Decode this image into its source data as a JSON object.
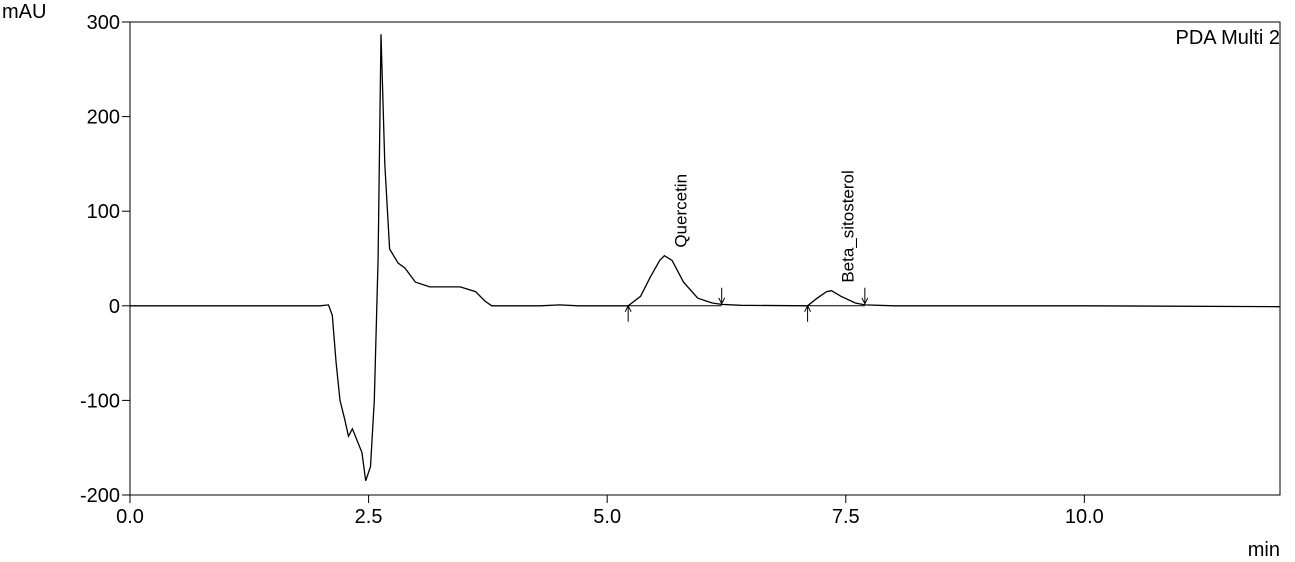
{
  "chart_data": {
    "type": "line",
    "title": "PDA Multi 2",
    "y_label": "mAU",
    "x_label": "min",
    "xlim": [
      0,
      12.05
    ],
    "ylim": [
      -200,
      300
    ],
    "xticks": [
      {
        "value": 0,
        "label": "0.0"
      },
      {
        "value": 2.5,
        "label": "2.5"
      },
      {
        "value": 5,
        "label": "5.0"
      },
      {
        "value": 7.5,
        "label": "7.5"
      },
      {
        "value": 10,
        "label": "10.0"
      }
    ],
    "yticks": [
      -200,
      -100,
      0,
      100,
      200,
      300
    ],
    "series": [
      {
        "color": "#000000",
        "x": [
          0,
          1.0,
          1.99,
          2.08,
          2.12,
          2.16,
          2.2,
          2.25,
          2.29,
          2.33,
          2.37,
          2.43,
          2.47,
          2.52,
          2.56,
          2.6,
          2.63,
          2.67,
          2.72,
          2.81,
          2.88,
          2.99,
          3.14,
          3.46,
          3.62,
          3.72,
          3.79,
          4.3,
          4.5,
          4.7,
          5.22,
          5.35,
          5.45,
          5.55,
          5.6,
          5.68,
          5.8,
          5.95,
          6.1,
          6.2,
          6.4,
          7.1,
          7.2,
          7.3,
          7.35,
          7.45,
          7.6,
          7.7,
          8.0,
          10.0,
          12.05
        ],
        "values": [
          0,
          0,
          0,
          1,
          -10,
          -60,
          -100,
          -120,
          -138,
          -130,
          -140,
          -155,
          -185,
          -170,
          -100,
          50,
          287,
          150,
          60,
          45,
          40,
          25,
          20,
          20,
          15,
          5,
          0,
          0,
          1,
          0,
          0,
          10,
          30,
          48,
          53,
          48,
          25,
          8,
          3,
          1.5,
          0.5,
          0,
          8,
          15,
          16,
          10,
          3,
          1,
          0,
          0,
          -1
        ]
      }
    ],
    "peaks": [
      {
        "label": "Quercetin",
        "x": 5.6,
        "y": 53,
        "start": 5.22,
        "end": 6.2
      },
      {
        "label": "Beta_sitosterol",
        "x": 7.35,
        "y": 16,
        "start": 7.1,
        "end": 7.7
      }
    ]
  }
}
